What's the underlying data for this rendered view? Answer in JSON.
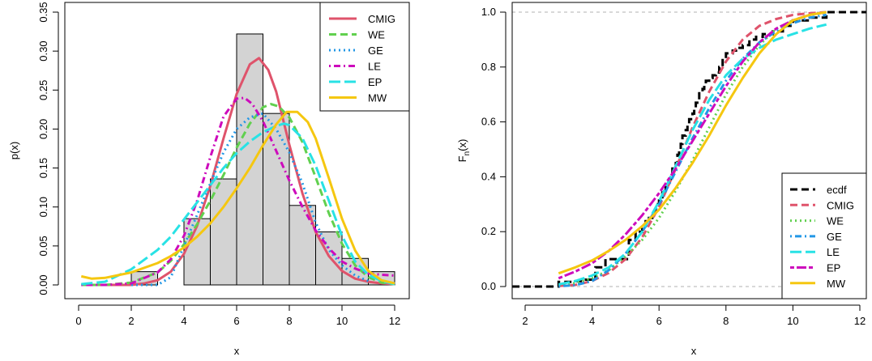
{
  "chart_data": [
    {
      "type": "histogram",
      "xlabel": "x",
      "ylabel": "p(x)",
      "xlim": [
        0,
        12
      ],
      "ylim": [
        0,
        0.35
      ],
      "x_ticks": [
        "0",
        "2",
        "4",
        "6",
        "8",
        "10",
        "12"
      ],
      "y_ticks": [
        "0.00",
        "0.05",
        "0.10",
        "0.15",
        "0.20",
        "0.25",
        "0.30",
        "0.35"
      ],
      "legend_position": "top-right",
      "histogram": {
        "bin_edges": [
          2,
          3,
          4,
          5,
          6,
          7,
          8,
          9,
          10,
          11,
          12
        ],
        "densities": [
          0.017,
          0.0,
          0.085,
          0.136,
          0.322,
          0.22,
          0.102,
          0.068,
          0.034,
          0.017
        ]
      },
      "series": [
        {
          "name": "CMIG",
          "color": "#DF536B",
          "dash": "solid",
          "x": [
            0.1,
            0.5,
            1,
            1.5,
            2,
            2.5,
            3,
            3.5,
            4,
            4.5,
            5,
            5.5,
            6,
            6.5,
            6.85,
            7.2,
            7.5,
            8,
            8.5,
            9,
            9.5,
            10,
            10.5,
            11,
            11.5,
            12
          ],
          "y": [
            0,
            0,
            0,
            0,
            0,
            0.002,
            0.006,
            0.017,
            0.04,
            0.076,
            0.127,
            0.188,
            0.245,
            0.283,
            0.291,
            0.276,
            0.248,
            0.18,
            0.117,
            0.068,
            0.037,
            0.018,
            0.008,
            0.004,
            0.002,
            0.001
          ]
        },
        {
          "name": "WE",
          "color": "#61D04F",
          "dash": "dashed",
          "x": [
            0.1,
            1,
            2,
            3,
            3.5,
            4,
            4.5,
            5,
            5.5,
            6,
            6.5,
            7,
            7.3,
            7.6,
            8,
            8.5,
            9,
            9.5,
            10,
            10.5,
            11,
            11.5,
            12
          ],
          "y": [
            0,
            0,
            0.003,
            0.016,
            0.031,
            0.052,
            0.078,
            0.108,
            0.141,
            0.176,
            0.207,
            0.228,
            0.232,
            0.229,
            0.215,
            0.183,
            0.138,
            0.092,
            0.053,
            0.025,
            0.01,
            0.003,
            0.001
          ]
        },
        {
          "name": "GE",
          "color": "#2297E6",
          "dash": "dotted",
          "x": [
            2,
            2.5,
            3,
            3.5,
            4,
            4.5,
            5,
            5.5,
            6,
            6.5,
            7,
            7.5,
            8,
            8.5,
            9,
            9.5,
            10,
            10.5,
            11
          ],
          "y": [
            0,
            0,
            0,
            0.01,
            0.05,
            0.09,
            0.13,
            0.17,
            0.2,
            0.215,
            0.22,
            0.2,
            0.17,
            0.13,
            0.08,
            0.045,
            0.025,
            0.012,
            0.005
          ]
        },
        {
          "name": "LE",
          "color": "#CD0BBC",
          "dash": "dotdash",
          "x": [
            0.1,
            1,
            2,
            3,
            3.5,
            4,
            4.5,
            5,
            5.5,
            6,
            6.3,
            6.6,
            7,
            7.5,
            8,
            8.5,
            9,
            9.5,
            10,
            10.5,
            11,
            11.5,
            12
          ],
          "y": [
            0,
            0,
            0.002,
            0.016,
            0.033,
            0.063,
            0.108,
            0.164,
            0.216,
            0.239,
            0.24,
            0.232,
            0.21,
            0.172,
            0.134,
            0.1,
            0.07,
            0.047,
            0.03,
            0.021,
            0.015,
            0.013,
            0.012
          ]
        },
        {
          "name": "EP",
          "color": "#28E2E5",
          "dash": "longdash",
          "x": [
            0.1,
            1,
            2,
            3,
            3.5,
            4,
            4.5,
            5,
            5.5,
            6,
            6.5,
            7,
            7.5,
            7.8,
            8,
            8.5,
            9,
            9.5,
            10,
            10.5,
            11,
            11.5,
            12
          ],
          "y": [
            0.001,
            0.004,
            0.02,
            0.045,
            0.062,
            0.084,
            0.106,
            0.128,
            0.15,
            0.169,
            0.184,
            0.196,
            0.204,
            0.207,
            0.205,
            0.188,
            0.153,
            0.108,
            0.063,
            0.03,
            0.013,
            0.005,
            0.001
          ]
        },
        {
          "name": "MW",
          "color": "#F5C710",
          "dash": "solid",
          "x": [
            0.1,
            0.5,
            1,
            2,
            3,
            3.5,
            4,
            4.5,
            5,
            5.5,
            6,
            6.5,
            7,
            7.5,
            7.9,
            8.3,
            8.7,
            9,
            9.5,
            10,
            10.5,
            11,
            11.5,
            12
          ],
          "y": [
            0.011,
            0.008,
            0.009,
            0.016,
            0.028,
            0.037,
            0.048,
            0.062,
            0.079,
            0.1,
            0.124,
            0.15,
            0.179,
            0.206,
            0.222,
            0.222,
            0.209,
            0.188,
            0.137,
            0.085,
            0.044,
            0.018,
            0.006,
            0.002
          ]
        }
      ]
    },
    {
      "type": "line",
      "xlabel": "x",
      "ylabel": "F",
      "ylabel_sub": "n",
      "ylabel_tail": "(x)",
      "xlim": [
        2,
        12
      ],
      "ylim": [
        0,
        1
      ],
      "x_ticks": [
        "2",
        "4",
        "6",
        "8",
        "10",
        "12"
      ],
      "y_ticks": [
        "0.0",
        "0.2",
        "0.4",
        "0.6",
        "0.8",
        "1.0"
      ],
      "reference_lines": [
        0,
        1
      ],
      "legend_position": "bottom-right",
      "ecdf": {
        "name": "ecdf",
        "color": "#000000",
        "dash": "dashed",
        "x": [
          3,
          3.4,
          3.7,
          4.1,
          4.4,
          4.6,
          4.9,
          5.1,
          5.3,
          5.5,
          5.6,
          5.8,
          5.9,
          6.0,
          6.1,
          6.2,
          6.3,
          6.35,
          6.4,
          6.5,
          6.55,
          6.6,
          6.65,
          6.7,
          6.8,
          6.85,
          6.9,
          7.0,
          7.05,
          7.1,
          7.2,
          7.3,
          7.35,
          7.4,
          7.5,
          7.6,
          7.7,
          7.8,
          7.9,
          8.0,
          8.2,
          8.3,
          8.5,
          8.7,
          8.9,
          9.1,
          9.4,
          9.7,
          10.0,
          10.5,
          11.0
        ],
        "y": [
          0.017,
          0.02,
          0.025,
          0.07,
          0.1,
          0.1,
          0.1,
          0.17,
          0.2,
          0.22,
          0.25,
          0.27,
          0.3,
          0.32,
          0.35,
          0.37,
          0.39,
          0.41,
          0.43,
          0.45,
          0.48,
          0.5,
          0.52,
          0.55,
          0.57,
          0.59,
          0.61,
          0.63,
          0.65,
          0.67,
          0.71,
          0.72,
          0.74,
          0.75,
          0.76,
          0.77,
          0.78,
          0.8,
          0.83,
          0.85,
          0.86,
          0.87,
          0.88,
          0.9,
          0.91,
          0.92,
          0.93,
          0.95,
          0.97,
          0.98,
          1.0
        ]
      },
      "series": [
        {
          "name": "CMIG",
          "color": "#DF536B",
          "dash": "dashed",
          "x": [
            3,
            3.5,
            4,
            4.5,
            5,
            5.5,
            6,
            6.5,
            7,
            7.5,
            8,
            8.5,
            9,
            9.5,
            10,
            10.5,
            11
          ],
          "y": [
            0.002,
            0.006,
            0.02,
            0.05,
            0.1,
            0.18,
            0.29,
            0.43,
            0.58,
            0.71,
            0.82,
            0.9,
            0.95,
            0.975,
            0.99,
            0.996,
            1.0
          ]
        },
        {
          "name": "WE",
          "color": "#61D04F",
          "dash": "dotted",
          "x": [
            3,
            3.5,
            4,
            4.5,
            5,
            5.5,
            6,
            6.5,
            7,
            7.5,
            8,
            8.5,
            9,
            9.5,
            10,
            10.5,
            11
          ],
          "y": [
            0.004,
            0.013,
            0.03,
            0.06,
            0.11,
            0.17,
            0.25,
            0.35,
            0.46,
            0.58,
            0.7,
            0.8,
            0.88,
            0.94,
            0.97,
            0.99,
            1.0
          ]
        },
        {
          "name": "GE",
          "color": "#2297E6",
          "dash": "dotdash",
          "x": [
            3,
            3.5,
            4,
            4.5,
            5,
            5.5,
            6,
            6.5,
            7,
            7.5,
            8,
            8.5,
            9,
            9.5,
            10,
            10.5,
            11
          ],
          "y": [
            0.001,
            0.005,
            0.02,
            0.06,
            0.12,
            0.2,
            0.3,
            0.42,
            0.54,
            0.65,
            0.75,
            0.83,
            0.89,
            0.93,
            0.96,
            0.98,
            0.99
          ]
        },
        {
          "name": "LE",
          "color": "#28E2E5",
          "dash": "longdash",
          "x": [
            3,
            3.5,
            4,
            4.5,
            5,
            5.5,
            6,
            6.5,
            7,
            7.5,
            8,
            8.5,
            9,
            9.5,
            10,
            10.5,
            11
          ],
          "y": [
            0.008,
            0.02,
            0.04,
            0.07,
            0.12,
            0.2,
            0.31,
            0.44,
            0.57,
            0.68,
            0.77,
            0.83,
            0.87,
            0.9,
            0.92,
            0.94,
            0.955
          ]
        },
        {
          "name": "EP",
          "color": "#CD0BBC",
          "dash": "twodash",
          "x": [
            3,
            3.5,
            4,
            4.5,
            5,
            5.5,
            6,
            6.5,
            7,
            7.5,
            8,
            8.5,
            9,
            9.5,
            10,
            10.5,
            11
          ],
          "y": [
            0.03,
            0.055,
            0.085,
            0.13,
            0.19,
            0.26,
            0.34,
            0.43,
            0.53,
            0.63,
            0.73,
            0.82,
            0.89,
            0.94,
            0.97,
            0.99,
            1.0
          ]
        },
        {
          "name": "MW",
          "color": "#F5C710",
          "dash": "solid",
          "x": [
            3,
            3.5,
            4,
            4.5,
            5,
            5.5,
            6,
            6.5,
            7,
            7.5,
            8,
            8.5,
            9,
            9.5,
            10,
            10.5,
            11
          ],
          "y": [
            0.048,
            0.07,
            0.095,
            0.13,
            0.17,
            0.22,
            0.28,
            0.36,
            0.45,
            0.55,
            0.66,
            0.76,
            0.85,
            0.92,
            0.97,
            0.99,
            1.0
          ]
        }
      ]
    }
  ]
}
